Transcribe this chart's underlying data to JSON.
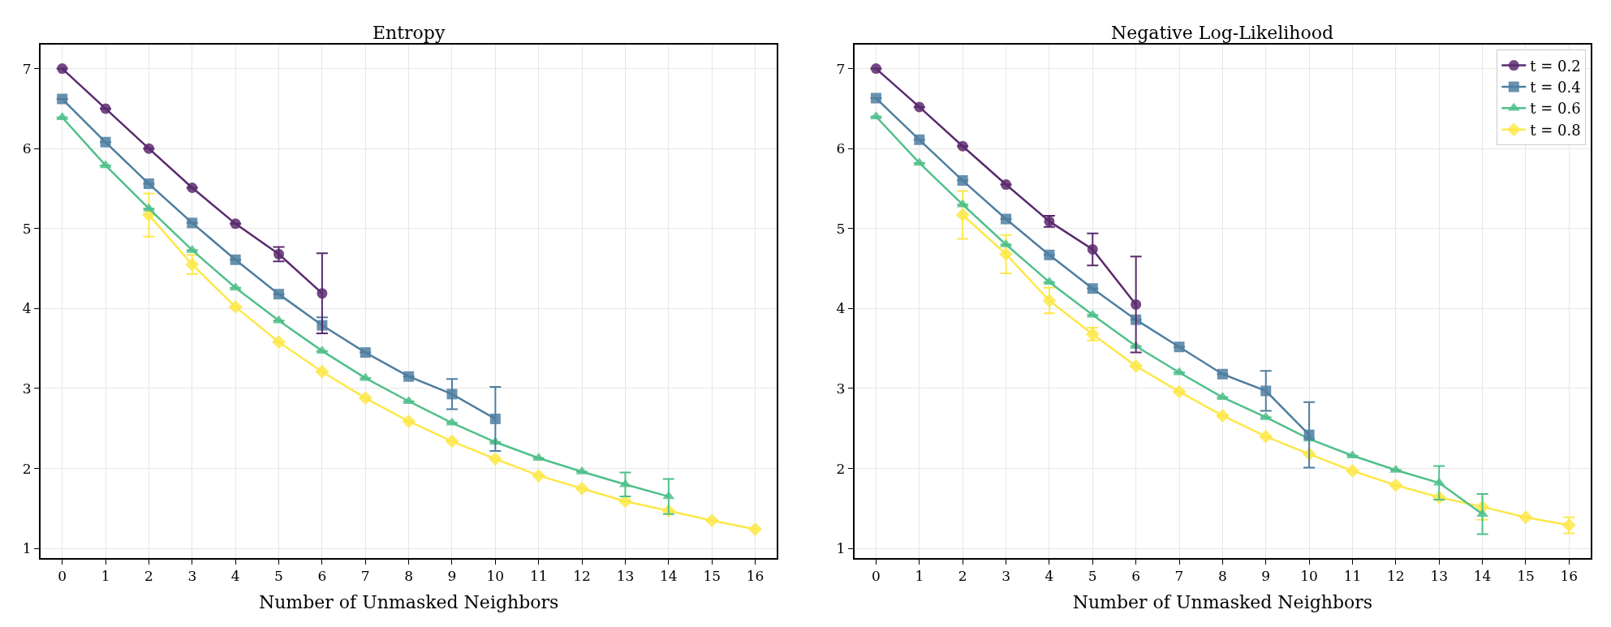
{
  "chart_data": [
    {
      "type": "line",
      "title": "Entropy",
      "xlabel": "Number of Unmasked Neighbors",
      "xlim": [
        -0.5,
        16.5
      ],
      "xticks": [
        0,
        1,
        2,
        3,
        4,
        5,
        6,
        7,
        8,
        9,
        10,
        11,
        12,
        13,
        14,
        15,
        16
      ],
      "ylim": [
        0.88,
        7.3
      ],
      "yticks": [
        1,
        2,
        3,
        4,
        5,
        6,
        7
      ],
      "grid": true,
      "legend": false,
      "series": [
        {
          "color": "#5a2a6e",
          "marker": "circle",
          "x": [
            0,
            1,
            2,
            3,
            4,
            5,
            6
          ],
          "values": [
            7.0,
            6.5,
            6.0,
            5.51,
            5.06,
            4.68,
            4.19
          ],
          "errors": [
            null,
            null,
            null,
            null,
            null,
            0.09,
            0.5
          ]
        },
        {
          "color": "#4e7ea0",
          "marker": "square",
          "x": [
            0,
            1,
            2,
            3,
            4,
            5,
            6,
            7,
            8,
            9,
            10
          ],
          "values": [
            6.62,
            6.08,
            5.56,
            5.07,
            4.61,
            4.18,
            3.79,
            3.45,
            3.15,
            2.93,
            2.62
          ],
          "errors": [
            null,
            null,
            null,
            null,
            null,
            null,
            0.1,
            null,
            null,
            0.19,
            0.4
          ]
        },
        {
          "color": "#4fc08a",
          "marker": "triangle",
          "x": [
            0,
            1,
            2,
            3,
            4,
            5,
            6,
            7,
            8,
            9,
            10,
            11,
            12,
            13,
            14
          ],
          "values": [
            6.39,
            5.79,
            5.25,
            4.73,
            4.26,
            3.85,
            3.47,
            3.13,
            2.84,
            2.57,
            2.33,
            2.13,
            1.96,
            1.8,
            1.65
          ],
          "errors": [
            null,
            null,
            null,
            null,
            null,
            null,
            null,
            null,
            null,
            null,
            null,
            null,
            null,
            0.15,
            0.22
          ]
        },
        {
          "color": "#fde74a",
          "marker": "diamond",
          "x": [
            2,
            3,
            4,
            5,
            6,
            7,
            8,
            9,
            10,
            11,
            12,
            13,
            14,
            15,
            16
          ],
          "values": [
            5.17,
            4.55,
            4.02,
            3.58,
            3.21,
            2.88,
            2.59,
            2.34,
            2.12,
            1.91,
            1.75,
            1.59,
            1.47,
            1.35,
            1.24
          ],
          "errors": [
            0.27,
            0.12,
            null,
            null,
            null,
            null,
            null,
            null,
            null,
            null,
            null,
            null,
            null,
            null,
            null
          ]
        }
      ]
    },
    {
      "type": "line",
      "title": "Negative Log-Likelihood",
      "xlabel": "Number of Unmasked Neighbors",
      "xlim": [
        -0.5,
        16.5
      ],
      "xticks": [
        0,
        1,
        2,
        3,
        4,
        5,
        6,
        7,
        8,
        9,
        10,
        11,
        12,
        13,
        14,
        15,
        16
      ],
      "ylim": [
        0.88,
        7.3
      ],
      "yticks": [
        1,
        2,
        3,
        4,
        5,
        6,
        7
      ],
      "grid": true,
      "legend": "top right",
      "series": [
        {
          "name": "t = 0.2",
          "color": "#5a2a6e",
          "marker": "circle",
          "x": [
            0,
            1,
            2,
            3,
            4,
            5,
            6
          ],
          "values": [
            7.0,
            6.52,
            6.03,
            5.55,
            5.09,
            4.74,
            4.05
          ],
          "errors": [
            null,
            null,
            null,
            null,
            0.07,
            0.2,
            0.6
          ]
        },
        {
          "name": "t = 0.4",
          "color": "#4e7ea0",
          "marker": "square",
          "x": [
            0,
            1,
            2,
            3,
            4,
            5,
            6,
            7,
            8,
            9,
            10
          ],
          "values": [
            6.63,
            6.11,
            5.6,
            5.12,
            4.67,
            4.25,
            3.86,
            3.52,
            3.18,
            2.97,
            2.42
          ],
          "errors": [
            null,
            null,
            null,
            null,
            null,
            null,
            null,
            null,
            null,
            0.25,
            0.41
          ]
        },
        {
          "name": "t = 0.6",
          "color": "#4fc08a",
          "marker": "triangle",
          "x": [
            0,
            1,
            2,
            3,
            4,
            5,
            6,
            7,
            8,
            9,
            10,
            11,
            12,
            13,
            14
          ],
          "values": [
            6.4,
            5.82,
            5.3,
            4.8,
            4.33,
            3.92,
            3.53,
            3.2,
            2.89,
            2.64,
            2.37,
            2.16,
            1.98,
            1.82,
            1.43
          ],
          "errors": [
            null,
            null,
            null,
            null,
            null,
            null,
            null,
            null,
            null,
            null,
            null,
            null,
            null,
            0.21,
            0.25
          ]
        },
        {
          "name": "t = 0.8",
          "color": "#fde74a",
          "marker": "diamond",
          "x": [
            2,
            3,
            4,
            5,
            6,
            7,
            8,
            9,
            10,
            11,
            12,
            13,
            14,
            15,
            16
          ],
          "values": [
            5.17,
            4.68,
            4.1,
            3.68,
            3.28,
            2.96,
            2.66,
            2.4,
            2.18,
            1.97,
            1.79,
            1.64,
            1.52,
            1.39,
            1.29
          ],
          "errors": [
            0.3,
            0.24,
            0.16,
            0.08,
            null,
            null,
            null,
            null,
            null,
            null,
            null,
            null,
            0.16,
            null,
            0.1
          ]
        }
      ]
    }
  ]
}
